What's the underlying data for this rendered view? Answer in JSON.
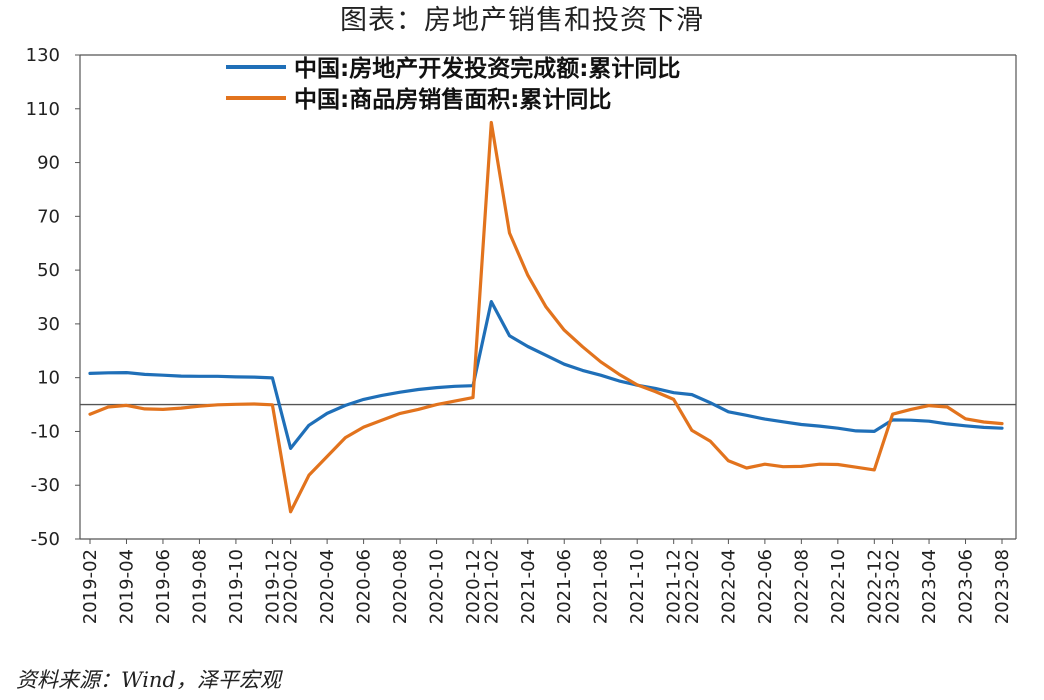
{
  "title": "图表：房地产销售和投资下滑",
  "source": "资料来源：Wind，泽平宏观",
  "colors": {
    "investment": "#1f6fb8",
    "sales": "#e2731d",
    "axis": "#555555"
  },
  "chart_data": {
    "type": "line",
    "title": "图表：房地产销售和投资下滑",
    "ylim": [
      -50,
      130
    ],
    "yticks": [
      -50,
      -30,
      -10,
      10,
      30,
      50,
      70,
      90,
      110,
      130
    ],
    "legend_position": "top",
    "grid": false,
    "x": [
      "2019-02",
      "2019-03",
      "2019-04",
      "2019-05",
      "2019-06",
      "2019-07",
      "2019-08",
      "2019-09",
      "2019-10",
      "2019-11",
      "2019-12",
      "2020-02",
      "2020-03",
      "2020-04",
      "2020-05",
      "2020-06",
      "2020-07",
      "2020-08",
      "2020-09",
      "2020-10",
      "2020-11",
      "2020-12",
      "2021-02",
      "2021-03",
      "2021-04",
      "2021-05",
      "2021-06",
      "2021-07",
      "2021-08",
      "2021-09",
      "2021-10",
      "2021-11",
      "2021-12",
      "2022-02",
      "2022-03",
      "2022-04",
      "2022-05",
      "2022-06",
      "2022-07",
      "2022-08",
      "2022-09",
      "2022-10",
      "2022-11",
      "2022-12",
      "2023-02",
      "2023-03",
      "2023-04",
      "2023-05",
      "2023-06",
      "2023-07",
      "2023-08"
    ],
    "xtick_labels": [
      "2019-02",
      "2019-04",
      "2019-06",
      "2019-08",
      "2019-10",
      "2019-12",
      "2020-02",
      "2020-04",
      "2020-06",
      "2020-08",
      "2020-10",
      "2020-12",
      "2021-02",
      "2021-04",
      "2021-06",
      "2021-08",
      "2021-10",
      "2021-12",
      "2022-02",
      "2022-04",
      "2022-06",
      "2022-08",
      "2022-10",
      "2022-12",
      "2023-02",
      "2023-04",
      "2023-06",
      "2023-08"
    ],
    "series": [
      {
        "name": "中国:房地产开发投资完成额:累计同比",
        "color": "#1f6fb8",
        "values": [
          11.6,
          11.8,
          11.9,
          11.2,
          10.9,
          10.6,
          10.5,
          10.5,
          10.3,
          10.2,
          9.9,
          -16.3,
          -7.7,
          -3.3,
          -0.3,
          1.9,
          3.4,
          4.6,
          5.6,
          6.3,
          6.8,
          7.0,
          38.3,
          25.6,
          21.6,
          18.3,
          15.0,
          12.7,
          10.9,
          8.8,
          7.2,
          6.0,
          4.4,
          3.7,
          0.7,
          -2.7,
          -4.0,
          -5.4,
          -6.4,
          -7.4,
          -8.0,
          -8.8,
          -9.8,
          -10.0,
          -5.7,
          -5.8,
          -6.2,
          -7.2,
          -7.9,
          -8.5,
          -8.8
        ]
      },
      {
        "name": "中国:商品房销售面积:累计同比",
        "color": "#e2731d",
        "values": [
          -3.6,
          -0.9,
          -0.3,
          -1.6,
          -1.8,
          -1.3,
          -0.6,
          -0.1,
          0.1,
          0.2,
          -0.1,
          -39.9,
          -26.3,
          -19.3,
          -12.3,
          -8.4,
          -5.8,
          -3.3,
          -1.8,
          0.0,
          1.3,
          2.6,
          104.9,
          63.8,
          48.1,
          36.3,
          27.7,
          21.5,
          15.9,
          11.3,
          7.3,
          4.8,
          1.9,
          -9.6,
          -13.6,
          -20.9,
          -23.6,
          -22.2,
          -23.1,
          -23.0,
          -22.2,
          -22.3,
          -23.3,
          -24.3,
          -3.6,
          -1.8,
          -0.4,
          -0.9,
          -5.3,
          -6.5,
          -7.1
        ]
      }
    ]
  }
}
